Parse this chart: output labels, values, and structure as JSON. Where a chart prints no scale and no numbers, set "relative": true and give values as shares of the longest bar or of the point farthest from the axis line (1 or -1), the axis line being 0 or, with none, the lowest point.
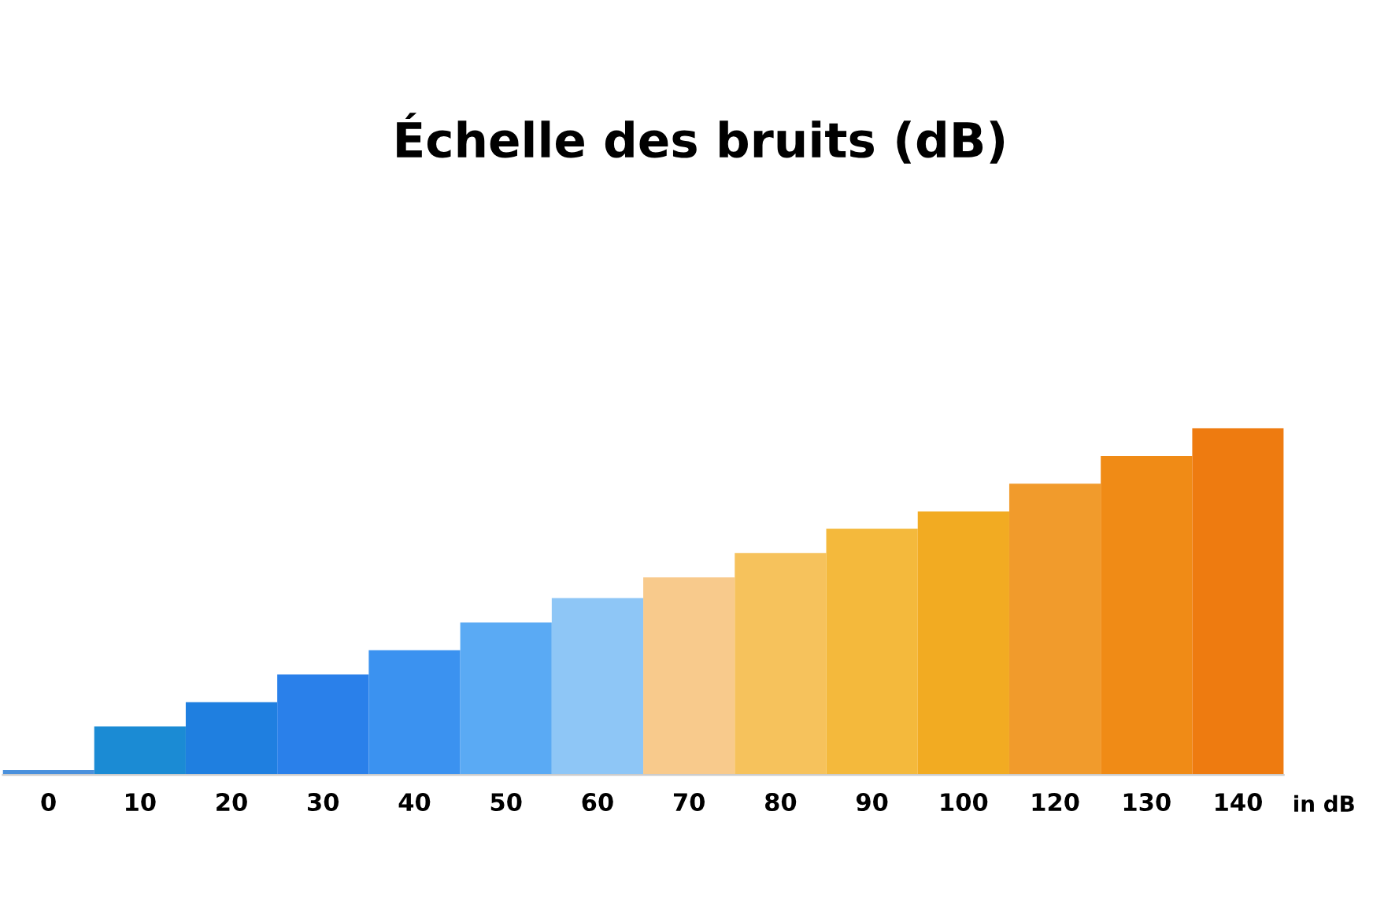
{
  "chart_data": {
    "type": "bar",
    "title": "Échelle des bruits (dB)",
    "xlabel": "in dB",
    "categories": [
      "0",
      "10",
      "20",
      "30",
      "40",
      "50",
      "60",
      "70",
      "80",
      "90",
      "100",
      "120",
      "130",
      "140"
    ],
    "values": [
      0.014,
      0.14,
      0.21,
      0.29,
      0.36,
      0.44,
      0.51,
      0.57,
      0.64,
      0.71,
      0.76,
      0.84,
      0.92,
      1
    ],
    "colors": [
      "#4a90dc",
      "#1b8bd4",
      "#1f7fe0",
      "#2a80ea",
      "#3b92f0",
      "#5aaaf4",
      "#8ec6f6",
      "#f8ca8c",
      "#f6c25c",
      "#f4b93c",
      "#f2ab22",
      "#f19b2c",
      "#f08b16",
      "#ee7b10"
    ],
    "relative": true,
    "grid": false,
    "legend": false
  }
}
